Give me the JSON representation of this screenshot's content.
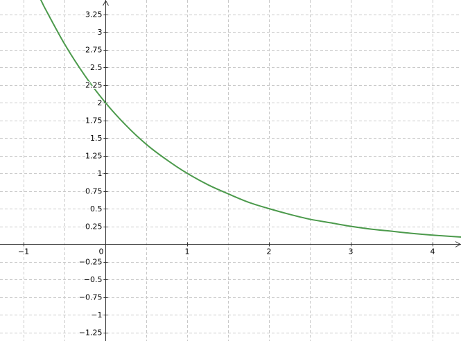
{
  "chart_data": {
    "type": "line",
    "title": "",
    "xlabel": "",
    "ylabel": "",
    "xlim": [
      -1.3,
      4.35
    ],
    "ylim": [
      -1.35,
      3.45
    ],
    "grid": true,
    "x_ticks": [
      -1,
      0,
      1,
      2,
      3,
      4
    ],
    "x_tick_labels": [
      "−1",
      "0",
      "1",
      "2",
      "3",
      "4"
    ],
    "y_ticks": [
      3.25,
      3,
      2.75,
      2.5,
      2.25,
      2,
      1.75,
      1.5,
      1.25,
      1,
      0.75,
      0.5,
      0.25,
      -0.25,
      -0.5,
      -0.75,
      -1,
      -1.25
    ],
    "y_tick_labels": [
      "3.25",
      "3",
      "2.75",
      "2.5",
      "2.25",
      "2",
      "1.75",
      "1.5",
      "1.25",
      "1",
      "0.75",
      "0.5",
      "0.25",
      "−0.25",
      "−0.5",
      "−0.75",
      "−1",
      "−1.25"
    ],
    "x_grid_step": 0.5,
    "y_grid_step": 0.25,
    "series": [
      {
        "color": "#4c9a4c",
        "x": [
          -0.75,
          -0.5,
          -0.25,
          0,
          0.25,
          0.5,
          0.75,
          1,
          1.25,
          1.5,
          1.75,
          2,
          2.25,
          2.5,
          2.75,
          3,
          3.25,
          3.5,
          3.75,
          4,
          4.25,
          4.35
        ],
        "y": [
          3.36,
          2.83,
          2.38,
          2.0,
          1.68,
          1.41,
          1.19,
          1.0,
          0.84,
          0.71,
          0.59,
          0.5,
          0.42,
          0.35,
          0.3,
          0.25,
          0.21,
          0.18,
          0.15,
          0.125,
          0.105,
          0.098
        ]
      }
    ]
  }
}
